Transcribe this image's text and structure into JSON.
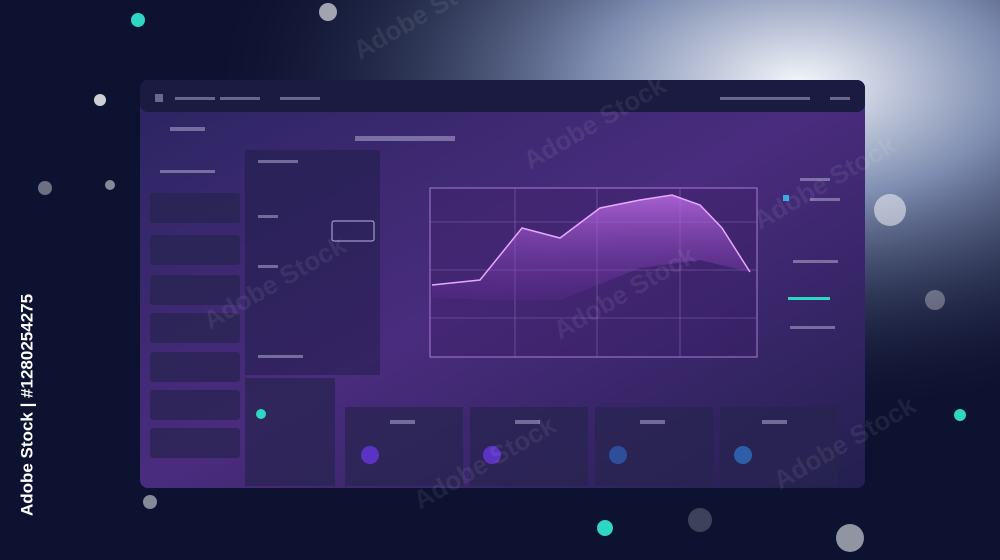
{
  "watermark": {
    "text": "Adobe Stock",
    "vertical_text": "Adobe Stock | #1280254275"
  }
}
